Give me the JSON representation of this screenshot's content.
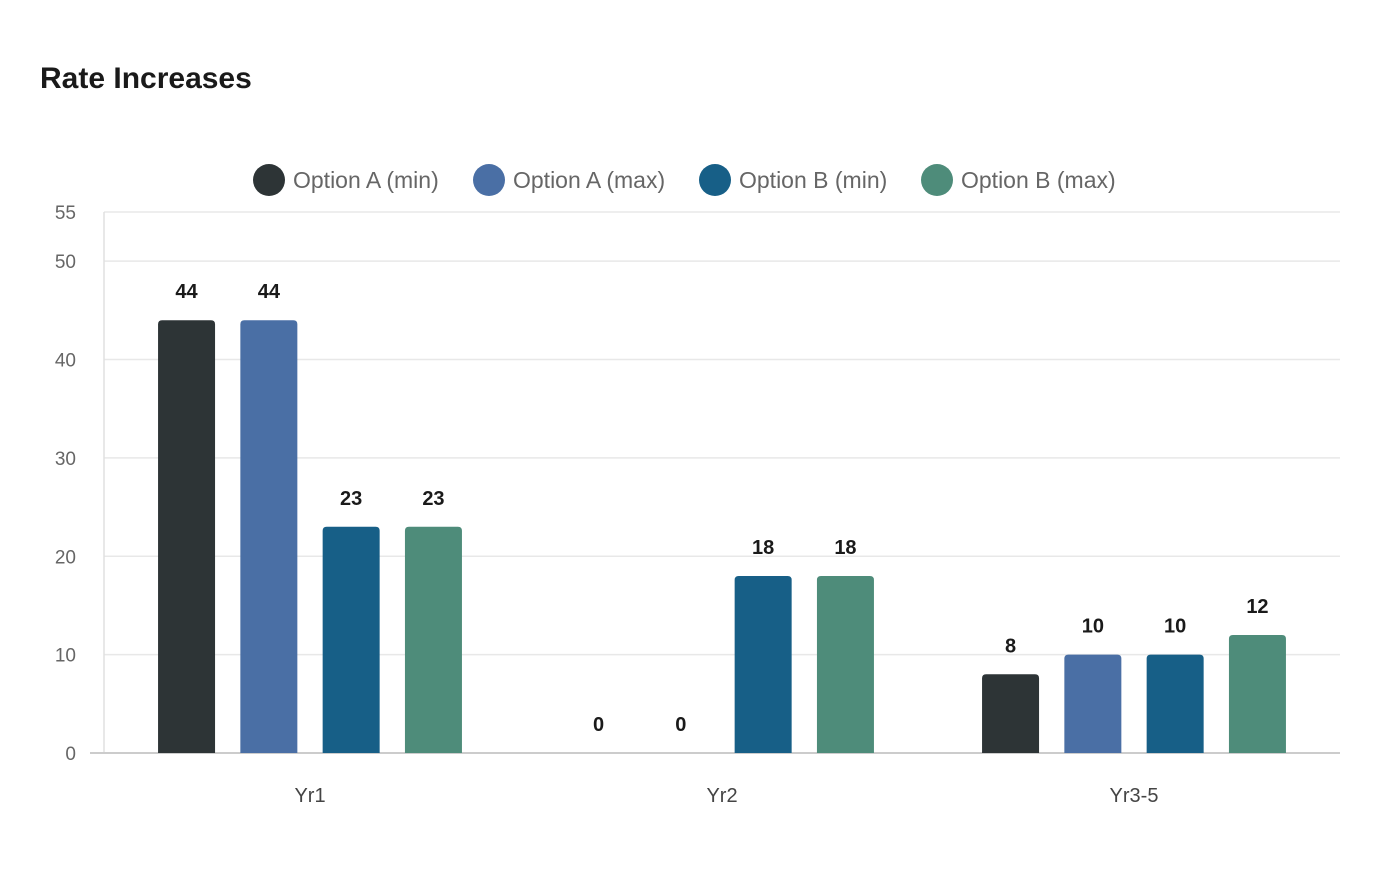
{
  "chart_data": {
    "type": "bar",
    "title": "Rate Increases",
    "xlabel": "",
    "ylabel": "",
    "categories": [
      "Yr1",
      "Yr2",
      "Yr3-5"
    ],
    "series": [
      {
        "name": "Option A (min)",
        "color": "#2d3436",
        "values": [
          44,
          0,
          8
        ]
      },
      {
        "name": "Option A (max)",
        "color": "#4a6fa5",
        "values": [
          44,
          0,
          10
        ]
      },
      {
        "name": "Option B (min)",
        "color": "#175f87",
        "values": [
          23,
          18,
          10
        ]
      },
      {
        "name": "Option B (max)",
        "color": "#4e8c7a",
        "values": [
          23,
          18,
          12
        ]
      }
    ],
    "ylim": [
      0,
      55
    ],
    "yticks": [
      0,
      10,
      20,
      30,
      40,
      50,
      55
    ],
    "grid": true,
    "legend": "top-center",
    "data_labels": true
  }
}
